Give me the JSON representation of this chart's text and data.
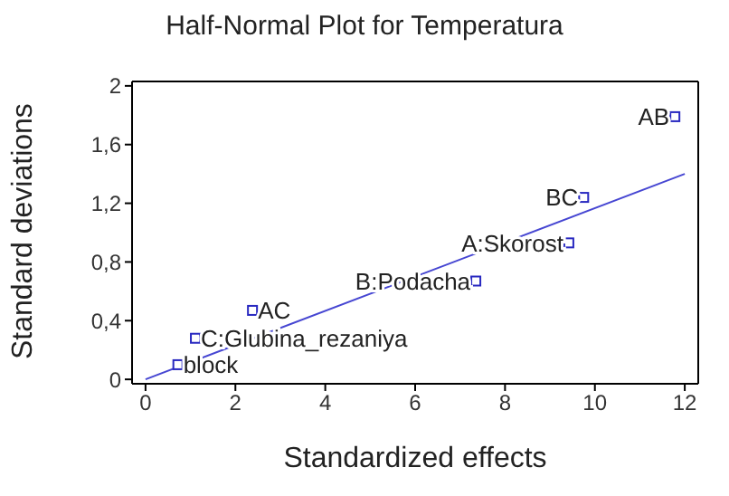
{
  "chart_data": {
    "type": "scatter",
    "title": "Half-Normal Plot for Temperatura",
    "xlabel": "Standardized effects",
    "ylabel": "Standard deviations",
    "xlim": [
      -0.3,
      12.3
    ],
    "ylim": [
      -0.03,
      2.03
    ],
    "xticks": [
      0,
      2,
      4,
      6,
      8,
      10,
      12
    ],
    "yticks": [
      0,
      {
        "value": 0.4,
        "label": "0,4"
      },
      {
        "value": 0.8,
        "label": "0,8"
      },
      {
        "value": 1.2,
        "label": "1,2"
      },
      {
        "value": 1.6,
        "label": "1,6"
      },
      2
    ],
    "marker": "square",
    "grid": false,
    "legend": false,
    "series": [
      {
        "color": "#2828c0",
        "x": [
          0.72,
          1.11,
          2.38,
          7.35,
          9.42,
          9.75,
          11.78
        ],
        "values": [
          0.1,
          0.28,
          0.47,
          0.67,
          0.93,
          1.24,
          1.79
        ]
      },
      {
        "type": "line",
        "color": "#4646d2",
        "x": [
          0,
          12
        ],
        "values": [
          0,
          1.4
        ],
        "marker": "none"
      }
    ],
    "annotations": [
      {
        "text": "block",
        "x": 0.72,
        "y": 0.1
      },
      {
        "text": "C:Glubina_rezaniya",
        "x": 1.11,
        "y": 0.28
      },
      {
        "text": "AC",
        "x": 2.38,
        "y": 0.47
      },
      {
        "text": "B:Podacha",
        "x": 7.35,
        "y": 0.67
      },
      {
        "text": "A:Skorost",
        "x": 9.42,
        "y": 0.93
      },
      {
        "text": "BC",
        "x": 9.75,
        "y": 1.24
      },
      {
        "text": "AB",
        "x": 11.78,
        "y": 1.79
      }
    ]
  }
}
